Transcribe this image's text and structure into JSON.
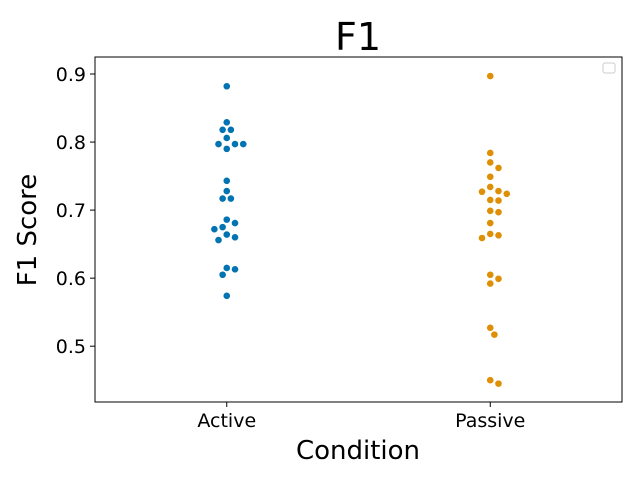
{
  "chart_data": {
    "type": "scatter",
    "title": "F1",
    "xlabel": "Condition",
    "ylabel": "F1 Score",
    "categories": [
      "Active",
      "Passive"
    ],
    "ylim": [
      0.418,
      0.925
    ],
    "yticks": [
      0.5,
      0.6,
      0.7,
      0.8,
      0.9
    ],
    "ytick_labels": [
      "0.5",
      "0.6",
      "0.7",
      "0.8",
      "0.9"
    ],
    "grid": false,
    "legend": "top-right",
    "series": [
      {
        "category": "Active",
        "color": "#0173b2",
        "values": [
          0.882,
          0.829,
          0.818,
          0.818,
          0.806,
          0.797,
          0.797,
          0.797,
          0.79,
          0.743,
          0.728,
          0.717,
          0.717,
          0.686,
          0.681,
          0.675,
          0.672,
          0.664,
          0.66,
          0.656,
          0.615,
          0.613,
          0.605,
          0.574
        ]
      },
      {
        "category": "Passive",
        "color": "#de8f05",
        "values": [
          0.897,
          0.784,
          0.77,
          0.762,
          0.749,
          0.734,
          0.728,
          0.727,
          0.724,
          0.715,
          0.714,
          0.699,
          0.697,
          0.681,
          0.665,
          0.663,
          0.659,
          0.605,
          0.599,
          0.592,
          0.527,
          0.517,
          0.45,
          0.445
        ]
      }
    ]
  }
}
